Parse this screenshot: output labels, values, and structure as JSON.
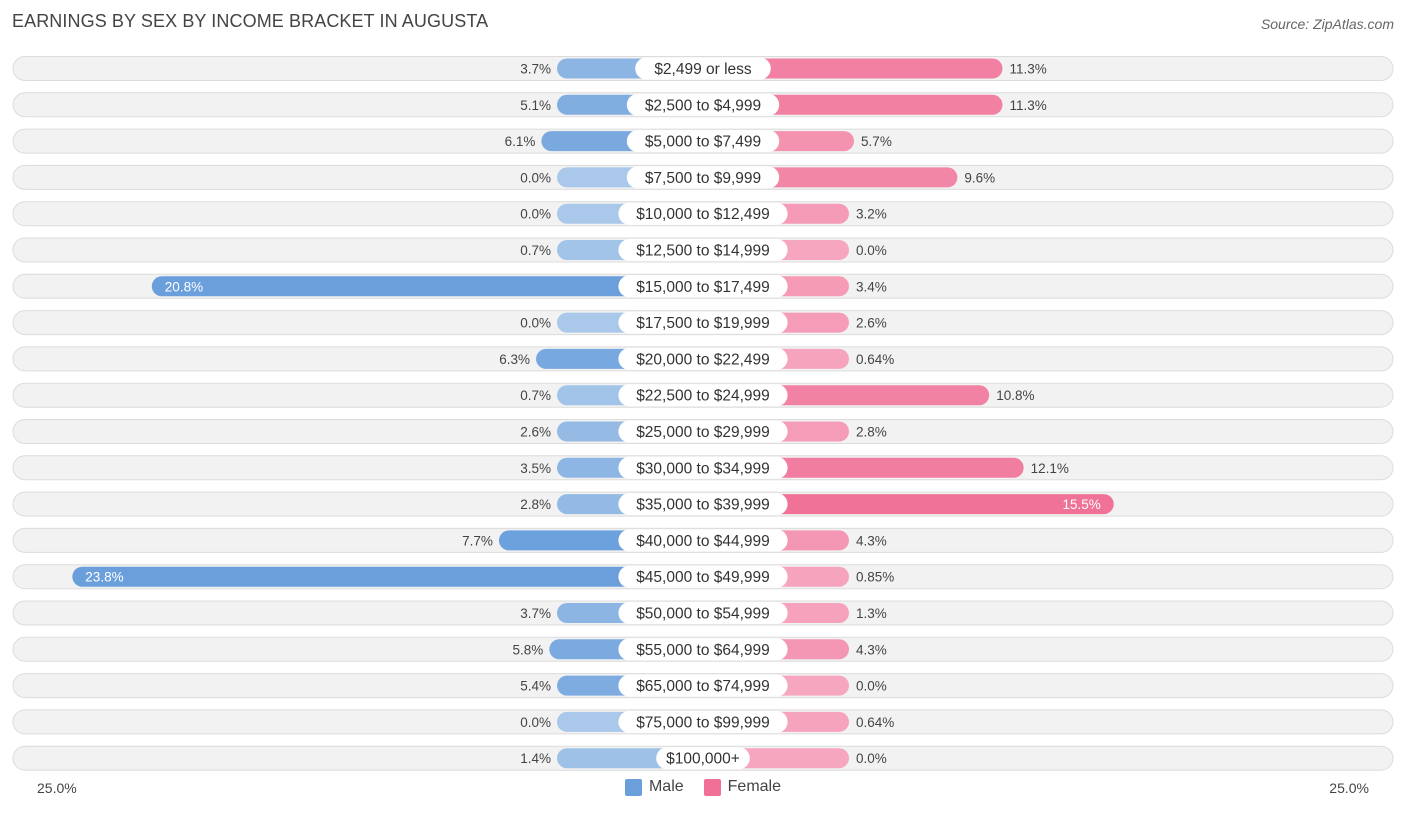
{
  "title": "EARNINGS BY SEX BY INCOME BRACKET IN AUGUSTA",
  "source": "Source: ZipAtlas.com",
  "colors": {
    "male": "#6a9fdc",
    "male_light": "#a9c8ea",
    "female": "#f07096",
    "female_light": "#f6a6bf",
    "row_bg": "#f2f2f2"
  },
  "legend": {
    "male": "Male",
    "female": "Female"
  },
  "axis": {
    "left_label": "25.0%",
    "right_label": "25.0%"
  },
  "chart_data": {
    "type": "bar",
    "orientation": "diverging-horizontal",
    "title": "EARNINGS BY SEX BY INCOME BRACKET IN AUGUSTA",
    "xlim": [
      -25,
      25
    ],
    "categories": [
      "$2,499 or less",
      "$2,500 to $4,999",
      "$5,000 to $7,499",
      "$7,500 to $9,999",
      "$10,000 to $12,499",
      "$12,500 to $14,999",
      "$15,000 to $17,499",
      "$17,500 to $19,999",
      "$20,000 to $22,499",
      "$22,500 to $24,999",
      "$25,000 to $29,999",
      "$30,000 to $34,999",
      "$35,000 to $39,999",
      "$40,000 to $44,999",
      "$45,000 to $49,999",
      "$50,000 to $54,999",
      "$55,000 to $64,999",
      "$65,000 to $74,999",
      "$75,000 to $99,999",
      "$100,000+"
    ],
    "series": [
      {
        "name": "Male",
        "values": [
          3.7,
          5.1,
          6.1,
          0.0,
          0.0,
          0.7,
          20.8,
          0.0,
          6.3,
          0.7,
          2.6,
          3.5,
          2.8,
          7.7,
          23.8,
          3.7,
          5.8,
          5.4,
          0.0,
          1.4
        ],
        "labels": [
          "3.7%",
          "5.1%",
          "6.1%",
          "0.0%",
          "0.0%",
          "0.7%",
          "20.8%",
          "0.0%",
          "6.3%",
          "0.7%",
          "2.6%",
          "3.5%",
          "2.8%",
          "7.7%",
          "23.8%",
          "3.7%",
          "5.8%",
          "5.4%",
          "0.0%",
          "1.4%"
        ]
      },
      {
        "name": "Female",
        "values": [
          11.3,
          11.3,
          5.7,
          9.6,
          3.2,
          0.0,
          3.4,
          2.6,
          0.64,
          10.8,
          2.8,
          12.1,
          15.5,
          4.3,
          0.85,
          1.3,
          4.3,
          0.0,
          0.64,
          0.0
        ],
        "labels": [
          "11.3%",
          "11.3%",
          "5.7%",
          "9.6%",
          "3.2%",
          "0.0%",
          "3.4%",
          "2.6%",
          "0.64%",
          "10.8%",
          "2.8%",
          "12.1%",
          "15.5%",
          "4.3%",
          "0.85%",
          "1.3%",
          "4.3%",
          "0.0%",
          "0.64%",
          "0.0%"
        ]
      }
    ]
  }
}
